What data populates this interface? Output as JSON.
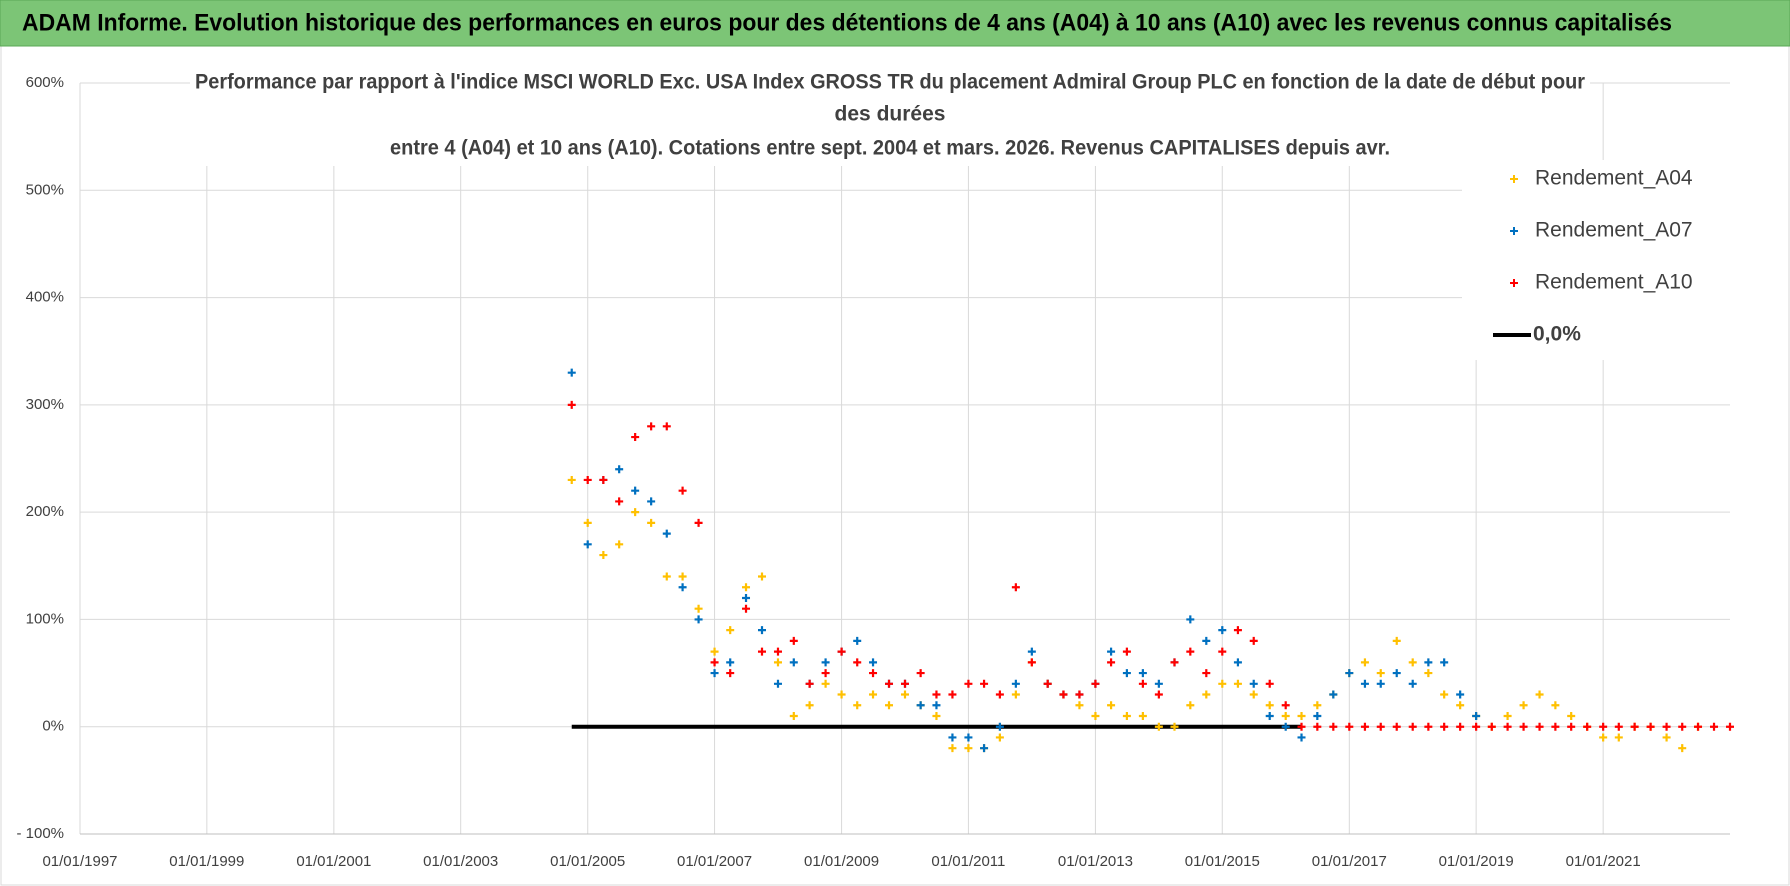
{
  "chart_data": {
    "type": "scatter",
    "header": "ADAM Informe. Evolution historique des performances en euros pour des détentions de 4 ans (A04) à 10 ans (A10) avec les revenus connus capitalisés",
    "title": [
      "Performance par rapport à l'indice MSCI WORLD Exc. USA Index GROSS TR  du placement Admiral Group PLC en fonction de la date de début pour",
      "des durées",
      "entre 4 (A04) et 10 ans (A10).  Cotations entre sept. 2004 et mars. 2026. Revenus CAPITALISES depuis avr."
    ],
    "x": [
      "2004-10-01",
      "2005-01-01",
      "2005-04-01",
      "2005-07-01",
      "2005-10-01",
      "2006-01-01",
      "2006-04-01",
      "2006-07-01",
      "2006-10-01",
      "2007-01-01",
      "2007-04-01",
      "2007-07-01",
      "2007-10-01",
      "2008-01-01",
      "2008-04-01",
      "2008-07-01",
      "2008-10-01",
      "2009-01-01",
      "2009-04-01",
      "2009-07-01",
      "2009-10-01",
      "2010-01-01",
      "2010-04-01",
      "2010-07-01",
      "2010-10-01",
      "2011-01-01",
      "2011-04-01",
      "2011-07-01",
      "2011-10-01",
      "2012-01-01",
      "2012-04-01",
      "2012-07-01",
      "2012-10-01",
      "2013-01-01",
      "2013-04-01",
      "2013-07-01",
      "2013-10-01",
      "2014-01-01",
      "2014-04-01",
      "2014-07-01",
      "2014-10-01",
      "2015-01-01",
      "2015-04-01",
      "2015-07-01",
      "2015-10-01",
      "2016-01-01",
      "2016-04-01",
      "2016-07-01",
      "2016-10-01",
      "2017-01-01",
      "2017-04-01",
      "2017-07-01",
      "2017-10-01",
      "2018-01-01",
      "2018-04-01",
      "2018-07-01",
      "2018-10-01",
      "2019-01-01",
      "2019-04-01",
      "2019-07-01",
      "2019-10-01",
      "2020-01-01",
      "2020-04-01",
      "2020-07-01",
      "2020-10-01",
      "2021-01-01",
      "2021-04-01",
      "2021-07-01",
      "2021-10-01",
      "2022-01-01",
      "2022-04-01",
      "2022-07-01",
      "2022-10-01",
      "2023-01-01"
    ],
    "series": [
      {
        "name": "Rendement_A04",
        "color": "#ffc000",
        "values": [
          230,
          190,
          160,
          170,
          200,
          190,
          140,
          140,
          110,
          70,
          90,
          130,
          140,
          60,
          10,
          20,
          40,
          30,
          20,
          30,
          20,
          30,
          20,
          10,
          -20,
          -20,
          -20,
          -10,
          30,
          60,
          40,
          30,
          20,
          10,
          20,
          10,
          10,
          0,
          0,
          20,
          30,
          40,
          40,
          30,
          20,
          10,
          10,
          20,
          30,
          50,
          60,
          50,
          80,
          60,
          50,
          30,
          20,
          10,
          0,
          10,
          20,
          30,
          20,
          10,
          0,
          -10,
          -10,
          0,
          0,
          -10,
          -20,
          0,
          null,
          null
        ]
      },
      {
        "name": "Rendement_A07",
        "color": "#0070c0",
        "values": [
          330,
          170,
          230,
          240,
          220,
          210,
          180,
          130,
          100,
          50,
          60,
          120,
          90,
          40,
          60,
          40,
          60,
          70,
          80,
          60,
          40,
          40,
          20,
          20,
          -10,
          -10,
          -20,
          0,
          40,
          70,
          40,
          30,
          30,
          40,
          70,
          50,
          50,
          40,
          60,
          100,
          80,
          90,
          60,
          40,
          10,
          0,
          -10,
          10,
          30,
          50,
          40,
          40,
          50,
          40,
          60,
          60,
          30,
          10,
          null,
          null,
          null,
          null,
          null,
          null,
          null,
          null,
          null,
          null,
          null,
          null,
          null,
          null,
          null,
          null
        ]
      },
      {
        "name": "Rendement_A10",
        "color": "#ff0000",
        "values": [
          300,
          230,
          230,
          210,
          270,
          280,
          280,
          220,
          190,
          60,
          50,
          110,
          70,
          70,
          80,
          40,
          50,
          70,
          60,
          50,
          40,
          40,
          50,
          30,
          30,
          40,
          40,
          30,
          130,
          60,
          40,
          30,
          30,
          40,
          60,
          70,
          40,
          30,
          60,
          70,
          50,
          70,
          90,
          80,
          40,
          20,
          0,
          0,
          0,
          0,
          0,
          0,
          0,
          0,
          0,
          0,
          0,
          0,
          0,
          0,
          0,
          0,
          0,
          0,
          0,
          0,
          0,
          0,
          0,
          0,
          0,
          0,
          0,
          0
        ]
      },
      {
        "name": "0,0%",
        "color": "#000000",
        "mark": "line",
        "values": [
          0,
          0,
          0,
          0,
          0,
          0,
          0,
          0,
          0,
          0,
          0,
          0,
          0,
          0,
          0,
          0,
          0,
          0,
          0,
          0,
          0,
          0,
          0,
          0,
          0,
          0,
          0,
          0,
          0,
          0,
          0,
          0,
          0,
          0,
          0,
          0,
          0,
          0,
          0,
          0,
          0,
          0,
          0,
          0,
          0,
          0,
          0,
          null,
          null,
          null,
          null,
          null,
          null,
          null,
          null,
          null,
          null,
          null,
          null,
          null,
          null,
          null,
          null,
          null,
          null,
          null,
          null,
          null,
          null,
          null,
          null,
          null,
          null,
          null
        ]
      }
    ],
    "xlim": [
      "1997-01-01",
      "2023-01-01"
    ],
    "xticks": [
      {
        "value": "1997-01-01",
        "label": "01/01/1997"
      },
      {
        "value": "1999-01-01",
        "label": "01/01/1999"
      },
      {
        "value": "2001-01-01",
        "label": "01/01/2001"
      },
      {
        "value": "2003-01-01",
        "label": "01/01/2003"
      },
      {
        "value": "2005-01-01",
        "label": "01/01/2005"
      },
      {
        "value": "2007-01-01",
        "label": "01/01/2007"
      },
      {
        "value": "2009-01-01",
        "label": "01/01/2009"
      },
      {
        "value": "2011-01-01",
        "label": "01/01/2011"
      },
      {
        "value": "2013-01-01",
        "label": "01/01/2013"
      },
      {
        "value": "2015-01-01",
        "label": "01/01/2015"
      },
      {
        "value": "2017-01-01",
        "label": "01/01/2017"
      },
      {
        "value": "2019-01-01",
        "label": "01/01/2019"
      },
      {
        "value": "2021-01-01",
        "label": "01/01/2021"
      }
    ],
    "ylim": [
      -100,
      600
    ],
    "yticks": [
      {
        "value": -100,
        "label": "- 100%"
      },
      {
        "value": 0,
        "label": "0%"
      },
      {
        "value": 100,
        "label": "100%"
      },
      {
        "value": 200,
        "label": "200%"
      },
      {
        "value": 300,
        "label": "300%"
      },
      {
        "value": 400,
        "label": "400%"
      },
      {
        "value": 500,
        "label": "500%"
      },
      {
        "value": 600,
        "label": "600%"
      }
    ],
    "grid": true,
    "legend": "top-right"
  }
}
